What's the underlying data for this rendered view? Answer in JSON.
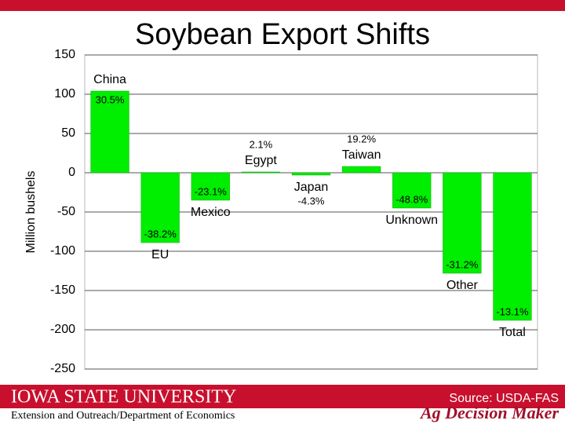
{
  "chart_data": {
    "type": "bar",
    "title": "Soybean Export Shifts",
    "y_label": "Million bushels",
    "categories": [
      "China",
      "EU",
      "Mexico",
      "Egypt",
      "Japan",
      "Taiwan",
      "Unknown",
      "Other",
      "Total"
    ],
    "values": [
      104,
      -89,
      -35,
      1,
      -3,
      8,
      -45,
      -128,
      -188
    ],
    "percent_labels": [
      "30.5%",
      "-38.2%",
      "-23.1%",
      "2.1%",
      "-4.3%",
      "19.2%",
      "-48.8%",
      "-31.2%",
      "-13.1%"
    ],
    "color": "#00ee00",
    "ylim": [
      -250,
      150
    ],
    "yticks": [
      -250,
      -200,
      -150,
      -100,
      -50,
      0,
      50,
      100,
      150
    ],
    "grid": true
  },
  "footer": {
    "university": "IOWA STATE UNIVERSITY",
    "department": "Extension and Outreach/Department of Economics",
    "source": "Source: USDA-FAS",
    "brand": "Ag Decision Maker"
  }
}
